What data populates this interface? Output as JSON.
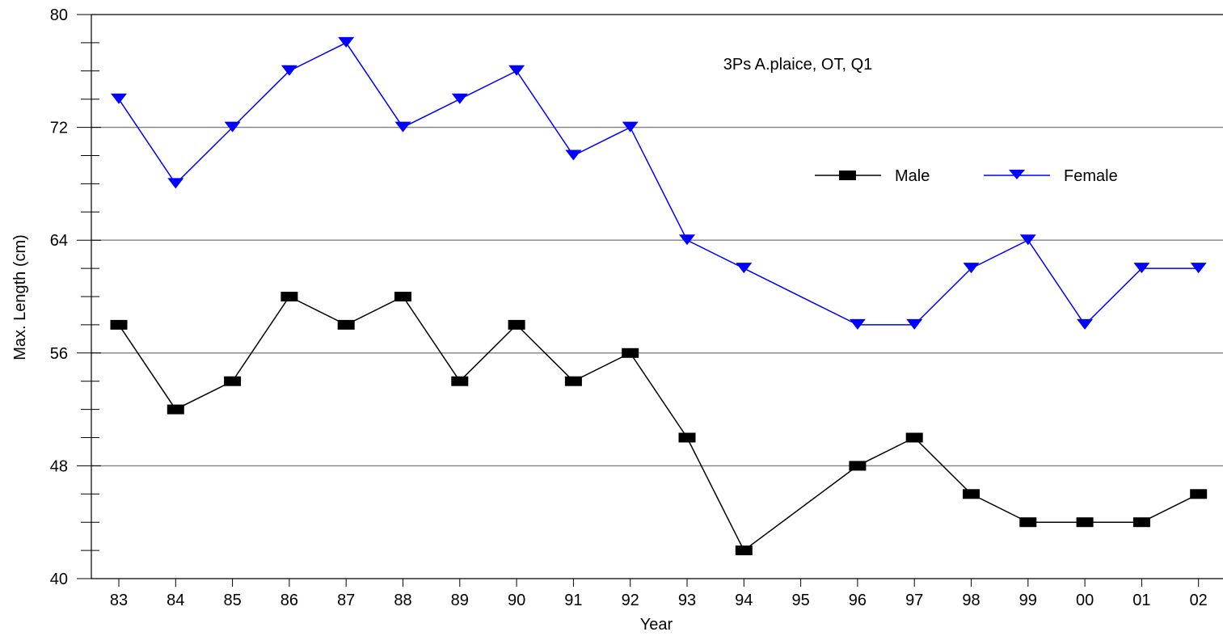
{
  "chart_data": {
    "type": "line",
    "title": "3Ps A.plaice, OT, Q1",
    "xlabel": "Year",
    "ylabel": "Max. Length (cm)",
    "ylim": [
      40,
      80
    ],
    "yticks": [
      "40",
      "48",
      "56",
      "64",
      "72",
      "80"
    ],
    "ytick_values": [
      40,
      48,
      56,
      64,
      72,
      80
    ],
    "ytick_minor_step": 2,
    "grid": "horizontal major",
    "legend_placement": "upper-right",
    "categories": [
      "83",
      "84",
      "85",
      "86",
      "87",
      "88",
      "89",
      "90",
      "91",
      "92",
      "93",
      "94",
      "95",
      "96",
      "97",
      "98",
      "99",
      "00",
      "01",
      "02"
    ],
    "series": [
      {
        "name": "Male",
        "color": "#000000",
        "marker": "square",
        "values": [
          58,
          52,
          54,
          60,
          58,
          60,
          54,
          58,
          54,
          56,
          50,
          42,
          null,
          48,
          50,
          46,
          44,
          44,
          44,
          46
        ]
      },
      {
        "name": "Female",
        "color": "#0000ff",
        "marker": "triangle-down",
        "values": [
          74,
          68,
          72,
          76,
          78,
          72,
          74,
          76,
          70,
          72,
          64,
          62,
          null,
          58,
          58,
          62,
          64,
          58,
          62,
          62
        ]
      }
    ]
  }
}
